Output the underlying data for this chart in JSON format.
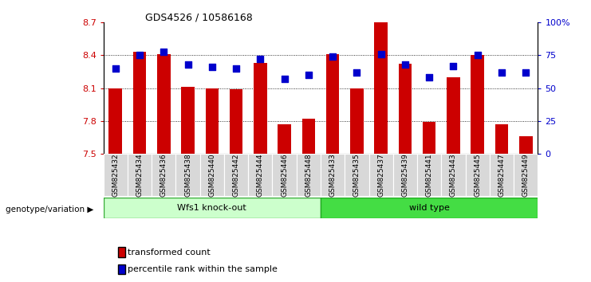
{
  "title": "GDS4526 / 10586168",
  "samples": [
    "GSM825432",
    "GSM825434",
    "GSM825436",
    "GSM825438",
    "GSM825440",
    "GSM825442",
    "GSM825444",
    "GSM825446",
    "GSM825448",
    "GSM825433",
    "GSM825435",
    "GSM825437",
    "GSM825439",
    "GSM825441",
    "GSM825443",
    "GSM825445",
    "GSM825447",
    "GSM825449"
  ],
  "transformed_counts": [
    8.1,
    8.43,
    8.41,
    8.11,
    8.1,
    8.09,
    8.33,
    7.77,
    7.82,
    8.41,
    8.1,
    8.7,
    8.32,
    7.79,
    8.2,
    8.4,
    7.77,
    7.66
  ],
  "percentile_ranks": [
    65,
    75,
    78,
    68,
    66,
    65,
    72,
    57,
    60,
    74,
    62,
    76,
    68,
    58,
    67,
    75,
    62,
    62
  ],
  "ylim_left": [
    7.5,
    8.7
  ],
  "ylim_right": [
    0,
    100
  ],
  "yticks_left": [
    7.5,
    7.8,
    8.1,
    8.4,
    8.7
  ],
  "ytick_labels_left": [
    "7.5",
    "7.8",
    "8.1",
    "8.4",
    "8.7"
  ],
  "yticks_right": [
    0,
    25,
    50,
    75,
    100
  ],
  "ytick_labels_right": [
    "0",
    "25",
    "50",
    "75",
    "100%"
  ],
  "bar_color": "#cc0000",
  "dot_color": "#0000cc",
  "group1_label": "Wfs1 knock-out",
  "group2_label": "wild type",
  "group1_color": "#ccffcc",
  "group2_color": "#44dd44",
  "group1_border": "#33aa33",
  "group2_border": "#22aa22",
  "group1_count": 9,
  "group2_count": 9,
  "legend_bar_label": "transformed count",
  "legend_dot_label": "percentile rank within the sample",
  "xlabel": "genotype/variation",
  "bar_width": 0.55,
  "dot_size": 30,
  "gridline_values": [
    7.8,
    8.1,
    8.4
  ],
  "tick_bg_color": "#d8d8d8"
}
